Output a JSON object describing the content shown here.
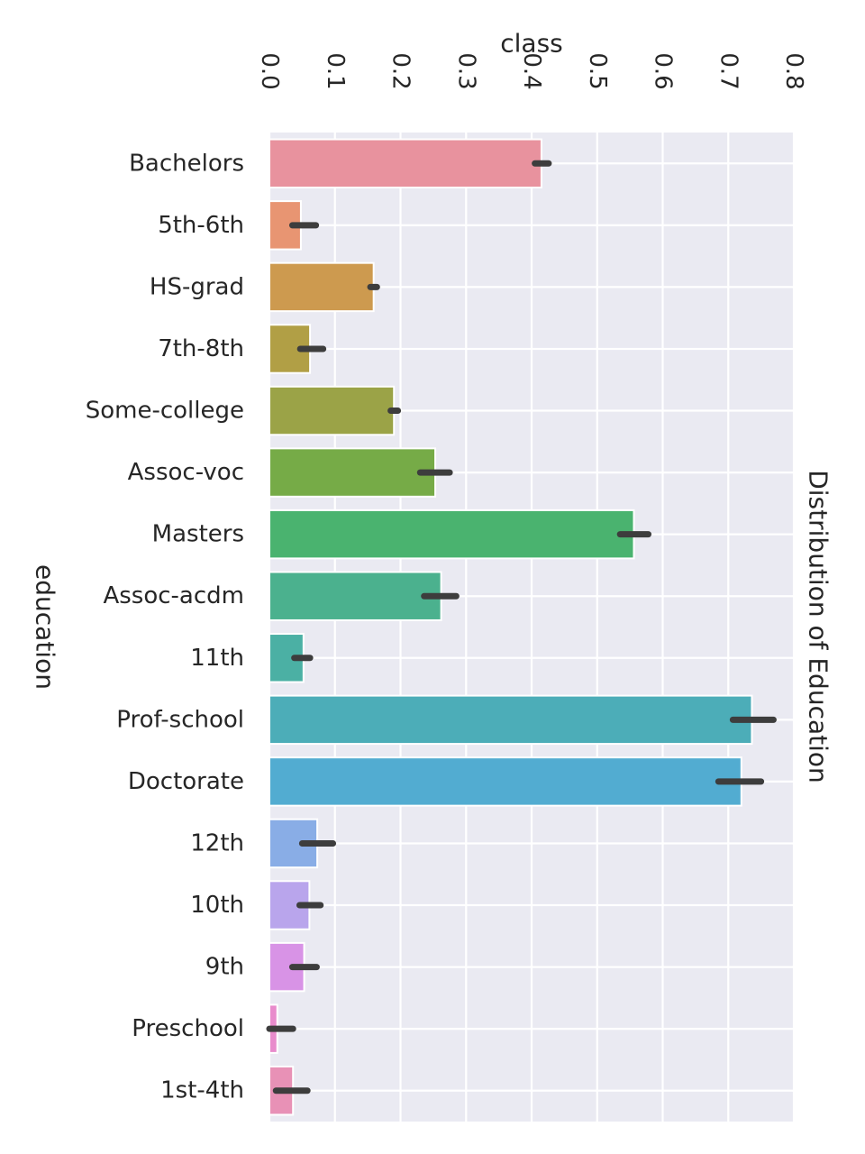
{
  "chart_data": {
    "type": "bar",
    "orientation": "horizontal",
    "title": "Distribution of Education",
    "xlabel": "class",
    "ylabel": "education",
    "xlim": [
      0.0,
      0.8
    ],
    "x_ticks": [
      "0.0",
      "0.1",
      "0.2",
      "0.3",
      "0.4",
      "0.5",
      "0.6",
      "0.7",
      "0.8"
    ],
    "x_axis_position": "top",
    "title_position": "right",
    "grid": true,
    "background_color": "#eaeaf2",
    "grid_color": "#ffffff",
    "error_bar_color": "#3d3d3d",
    "categories": [
      "Bachelors",
      "5th-6th",
      "HS-grad",
      "7th-8th",
      "Some-college",
      "Assoc-voc",
      "Masters",
      "Assoc-acdm",
      "11th",
      "Prof-school",
      "Doctorate",
      "12th",
      "10th",
      "9th",
      "Preschool",
      "1st-4th"
    ],
    "values": [
      0.415,
      0.048,
      0.159,
      0.062,
      0.19,
      0.253,
      0.556,
      0.262,
      0.052,
      0.736,
      0.72,
      0.073,
      0.061,
      0.053,
      0.012,
      0.036
    ],
    "error_bars": [
      [
        0.405,
        0.426
      ],
      [
        0.035,
        0.071
      ],
      [
        0.154,
        0.164
      ],
      [
        0.047,
        0.082
      ],
      [
        0.185,
        0.196
      ],
      [
        0.23,
        0.275
      ],
      [
        0.535,
        0.578
      ],
      [
        0.236,
        0.285
      ],
      [
        0.038,
        0.062
      ],
      [
        0.707,
        0.769
      ],
      [
        0.685,
        0.75
      ],
      [
        0.05,
        0.097
      ],
      [
        0.046,
        0.078
      ],
      [
        0.035,
        0.072
      ],
      [
        0.0,
        0.036
      ],
      [
        0.01,
        0.058
      ]
    ],
    "colors": [
      "#e8929e",
      "#e89572",
      "#cd9a4f",
      "#b19f45",
      "#9ba347",
      "#76ab47",
      "#4ab36f",
      "#4bb18e",
      "#4bb0a4",
      "#4cadb8",
      "#52acd1",
      "#89ade6",
      "#b9a5ec",
      "#d893e6",
      "#e88bcc",
      "#e891b6"
    ]
  }
}
